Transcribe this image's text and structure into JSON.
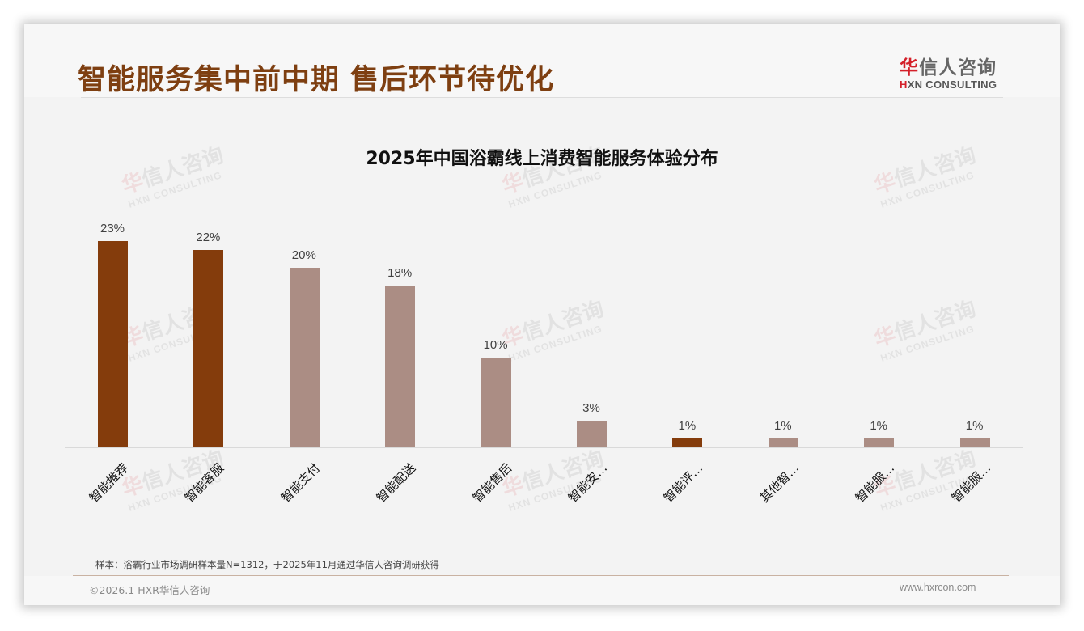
{
  "header": {
    "title": "智能服务集中前中期 售后环节待优化",
    "logo": {
      "cn_red": "华",
      "cn_rest": "信人咨询",
      "en_red": "H",
      "en_rest": "XN CONSULTING"
    }
  },
  "watermark": {
    "cn_red": "华",
    "cn_rest": "信人咨询",
    "en": "HXN CONSULTING"
  },
  "colors": {
    "highlight": "#843c0c",
    "normal": "#ab8d84",
    "title": "#7e3f11",
    "logo_red": "#d4202a"
  },
  "chart_data": {
    "type": "bar",
    "title": "2025年中国浴霸线上消费智能服务体验分布",
    "xlabel": "",
    "ylabel": "",
    "ylim": [
      0,
      25
    ],
    "grid": false,
    "legend": "none",
    "categories": [
      "智能推荐",
      "智能客服",
      "智能支付",
      "智能配送",
      "智能售后",
      "智能安…",
      "智能评…",
      "其他智…",
      "智能服…",
      "智能服…"
    ],
    "values": [
      23,
      22,
      20,
      18,
      10,
      3,
      1,
      1,
      1,
      1
    ],
    "value_labels": [
      "23%",
      "22%",
      "20%",
      "18%",
      "10%",
      "3%",
      "1%",
      "1%",
      "1%",
      "1%"
    ],
    "highlighted": [
      true,
      true,
      false,
      false,
      false,
      false,
      true,
      false,
      false,
      false
    ]
  },
  "footer": {
    "note": "样本：浴霸行业市场调研样本量N=1312，于2025年11月通过华信人咨询调研获得",
    "copyright": "©2026.1 HXR华信人咨询",
    "website": "www.hxrcon.com"
  }
}
